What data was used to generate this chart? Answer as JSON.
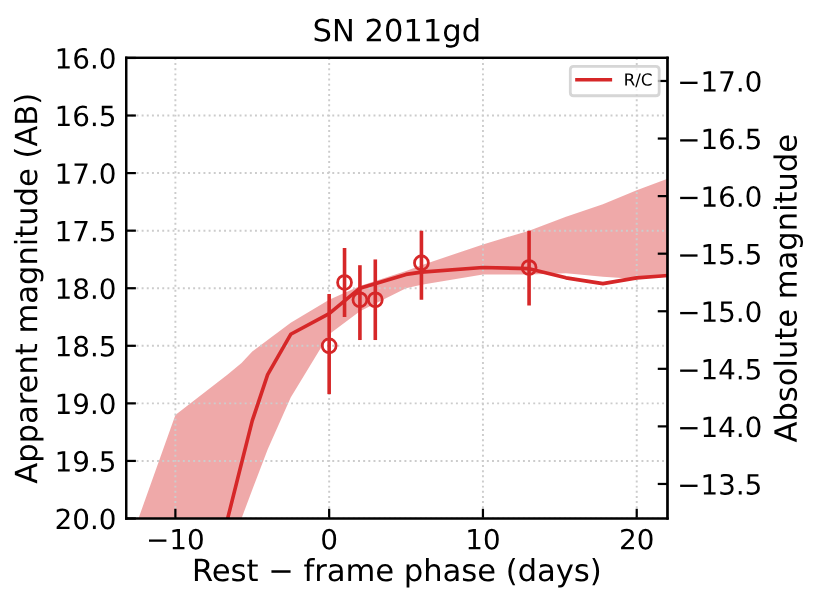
{
  "chart_data": {
    "type": "line",
    "title": "SN 2011gd",
    "xlabel": "Rest − frame phase (days)",
    "ylabel": "Apparent magnitude (AB)",
    "y2label": "Absolute magnitude",
    "xlim": [
      -13.2,
      22
    ],
    "xticks": [
      {
        "value": -10,
        "label": "−10"
      },
      0,
      10,
      20
    ],
    "ylim": [
      20,
      16
    ],
    "yticks": [
      {
        "value": 16,
        "label": "16.0"
      },
      16.5,
      {
        "value": 17,
        "label": "17.0"
      },
      17.5,
      {
        "value": 18,
        "label": "18.0"
      },
      18.5,
      {
        "value": 19,
        "label": "19.0"
      },
      19.5,
      {
        "value": 20,
        "label": "20.0"
      }
    ],
    "y2lim": [
      -13.2,
      -17.2
    ],
    "y2ticks": [
      {
        "value": -17,
        "label": "−17.0"
      },
      {
        "value": -16.5,
        "label": "−16.5"
      },
      {
        "value": -16,
        "label": "−16.0"
      },
      {
        "value": -15.5,
        "label": "−15.5"
      },
      {
        "value": -15,
        "label": "−15.0"
      },
      {
        "value": -14.5,
        "label": "−14.5"
      },
      {
        "value": -14,
        "label": "−14.0"
      },
      {
        "value": -13.5,
        "label": "−13.5"
      }
    ],
    "grid": true,
    "legend": "top right",
    "series": [
      {
        "name": "R/C",
        "color": "#d62728",
        "line_style": "solid",
        "marker": "none",
        "x": [
          -12.4,
          -10,
          -6.6,
          -5.7,
          -5,
          -4,
          -2.5,
          0,
          2,
          5,
          6,
          10,
          13,
          15.4,
          17.8,
          20,
          22
        ],
        "values": [
          null,
          null,
          20,
          19.52,
          19.15,
          18.75,
          18.4,
          18.22,
          18.0,
          17.88,
          17.86,
          17.82,
          17.83,
          17.91,
          17.96,
          17.91,
          17.89
        ],
        "upper": [
          20,
          19.1,
          18.75,
          18.65,
          18.55,
          18.45,
          18.3,
          18.1,
          17.98,
          17.85,
          17.8,
          17.62,
          17.5,
          17.38,
          17.27,
          17.15,
          17.05
        ],
        "lower": [
          20,
          20,
          20,
          20,
          19.75,
          19.4,
          18.95,
          18.4,
          18.2,
          18.0,
          17.97,
          17.88,
          17.88,
          17.87,
          17.9,
          17.92,
          17.9
        ]
      },
      {
        "type": "scatter",
        "color": "#d62728",
        "marker": "circle",
        "x": [
          0,
          1,
          2,
          3,
          6,
          13
        ],
        "values": [
          18.5,
          17.95,
          18.1,
          18.1,
          17.78,
          17.82
        ],
        "errors": [
          [
            18.05,
            18.92
          ],
          [
            17.65,
            18.25
          ],
          [
            17.8,
            18.45
          ],
          [
            17.75,
            18.45
          ],
          [
            17.5,
            18.1
          ],
          [
            17.5,
            18.15
          ]
        ]
      }
    ]
  }
}
